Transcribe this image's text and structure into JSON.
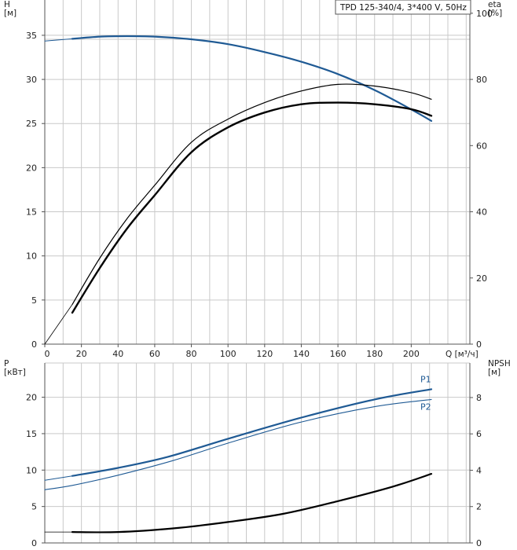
{
  "chart_data": [
    {
      "type": "line",
      "legend": "TPD 125-340/4, 3*400 V, 50Hz",
      "xlabel": "Q [м³/ч]",
      "xlim": [
        0,
        232
      ],
      "xticks": [
        0,
        20,
        40,
        60,
        80,
        100,
        120,
        140,
        160,
        180,
        200
      ],
      "y_left": {
        "title_lines": [
          "H",
          "[м]"
        ],
        "ylim": [
          0,
          39
        ],
        "ticks": [
          0,
          5,
          10,
          15,
          20,
          25,
          30,
          35
        ]
      },
      "y_right": {
        "title_lines": [
          "eta",
          "[%]"
        ],
        "ylim": [
          0,
          104
        ],
        "ticks": [
          0,
          20,
          40,
          60,
          80,
          100
        ]
      },
      "grid": true,
      "series": [
        {
          "name": "",
          "axis": "left",
          "color": "#1f5a94",
          "width": 2.2,
          "x": [
            15,
            30,
            45,
            60,
            80,
            100,
            120,
            140,
            160,
            180,
            200,
            211
          ],
          "y": [
            34.6,
            34.85,
            34.9,
            34.85,
            34.55,
            34.0,
            33.1,
            32.0,
            30.6,
            28.8,
            26.6,
            25.3
          ]
        },
        {
          "name": "",
          "axis": "left",
          "color": "#1f5a94",
          "width": 1,
          "dash": true,
          "x": [
            0,
            15
          ],
          "y": [
            34.35,
            34.6
          ]
        },
        {
          "name": "",
          "axis": "right",
          "color": "#000000",
          "width": 1.2,
          "x": [
            15,
            30,
            45,
            60,
            80,
            100,
            120,
            140,
            160,
            180,
            200,
            211
          ],
          "y": [
            12,
            26,
            38,
            48,
            61,
            68,
            73,
            76.5,
            78.5,
            78,
            76,
            74
          ]
        },
        {
          "name": "",
          "axis": "right",
          "color": "#000000",
          "width": 2.4,
          "x": [
            15,
            30,
            45,
            60,
            80,
            100,
            120,
            140,
            160,
            180,
            200,
            211
          ],
          "y": [
            9.5,
            23,
            35,
            45,
            58,
            65.5,
            70,
            72.5,
            73,
            72.5,
            71,
            69
          ]
        },
        {
          "name": "",
          "axis": "right",
          "color": "#000000",
          "width": 0.8,
          "x": [
            0,
            15
          ],
          "y": [
            0,
            12
          ]
        }
      ]
    },
    {
      "type": "line",
      "xlim": [
        0,
        232
      ],
      "y_left": {
        "title_lines": [
          "P",
          "[кВт]"
        ],
        "ylim": [
          0,
          24.7
        ],
        "ticks": [
          0,
          5,
          10,
          15,
          20
        ]
      },
      "y_right": {
        "title_lines": [
          "NPSH",
          "[м]"
        ],
        "ylim": [
          0,
          9.9
        ],
        "ticks": [
          0,
          2,
          4,
          6,
          8
        ]
      },
      "grid": true,
      "series": [
        {
          "name": "P1",
          "axis": "left",
          "color": "#1f5a94",
          "width": 2.2,
          "x": [
            15,
            40,
            67,
            100,
            140,
            180,
            211
          ],
          "y": [
            9.2,
            10.3,
            11.8,
            14.3,
            17.2,
            19.7,
            21.1
          ]
        },
        {
          "name": "",
          "axis": "left",
          "color": "#1f5a94",
          "width": 1,
          "x": [
            0,
            15
          ],
          "y": [
            8.6,
            9.2
          ]
        },
        {
          "name": "P2",
          "axis": "left",
          "color": "#1f5a94",
          "width": 1.1,
          "x": [
            0,
            15,
            40,
            70,
            100,
            140,
            180,
            211
          ],
          "y": [
            7.3,
            7.9,
            9.3,
            11.3,
            13.7,
            16.6,
            18.7,
            19.7
          ]
        },
        {
          "name": "",
          "axis": "right",
          "color": "#000000",
          "width": 2.2,
          "x": [
            15,
            40,
            70,
            100,
            130,
            160,
            190,
            211
          ],
          "y": [
            0.6,
            0.6,
            0.8,
            1.15,
            1.6,
            2.3,
            3.1,
            3.8
          ]
        },
        {
          "name": "",
          "axis": "right",
          "color": "#000000",
          "width": 0.8,
          "x": [
            0,
            15
          ],
          "y": [
            0.6,
            0.6
          ]
        }
      ]
    }
  ]
}
